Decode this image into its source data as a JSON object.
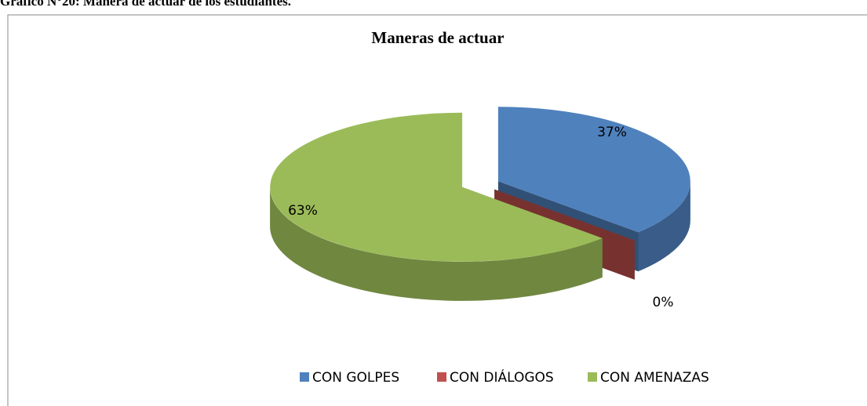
{
  "caption": "Gráfico N°20: Manera de actuar de los estudiantes.",
  "chart_data": {
    "type": "pie3d",
    "title": "Maneras de actuar",
    "categories": [
      "CON GOLPES",
      "CON DIÁLOGOS",
      "CON AMENAZAS"
    ],
    "values": [
      37,
      0,
      63
    ],
    "value_labels": [
      "37%",
      "0%",
      "63%"
    ],
    "colors": [
      "#4f81bd",
      "#c0504d",
      "#9bbb59"
    ],
    "legend": "bottom"
  }
}
